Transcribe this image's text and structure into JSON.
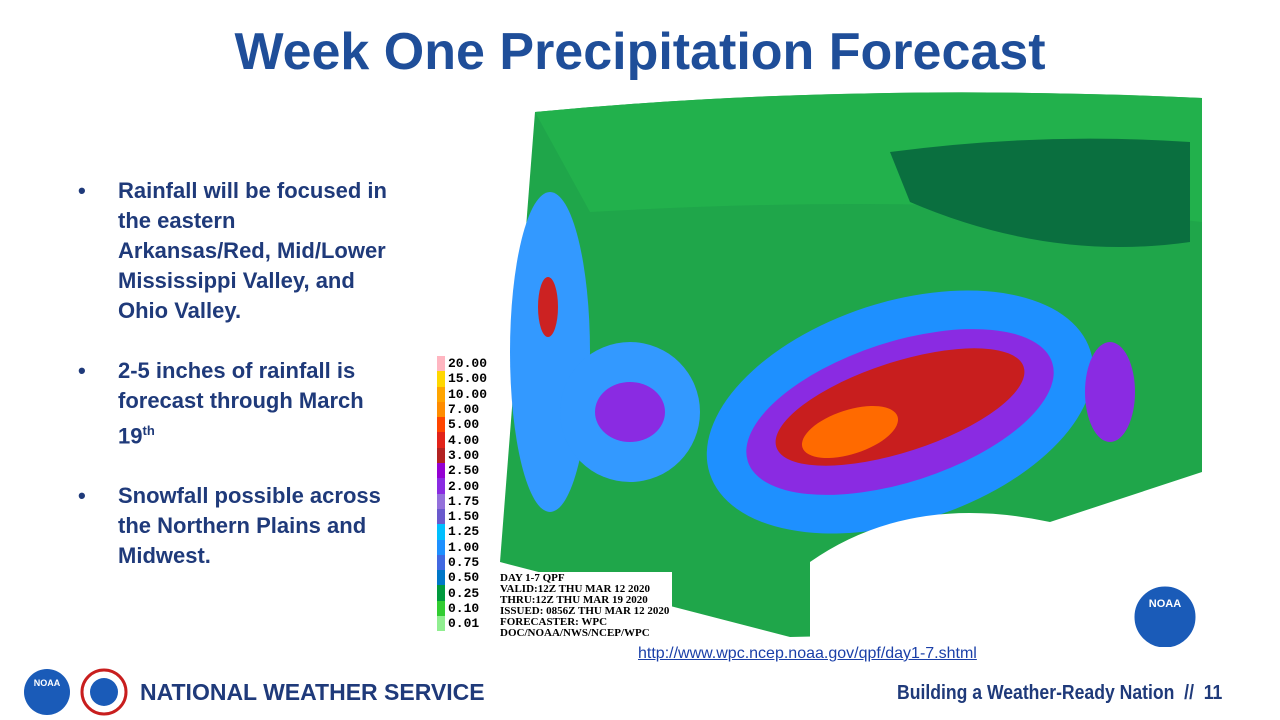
{
  "header": {
    "title": "Week One Precipitation Forecast"
  },
  "bullets": [
    {
      "text": "Rainfall will be focused in the eastern Arkansas/Red, Mid/Lower Mississippi Valley, and Ohio Valley."
    },
    {
      "text": "2-5 inches of rainfall is forecast through March 19",
      "sup": "th"
    },
    {
      "text": "Snowfall possible across the Northern Plains and Midwest."
    }
  ],
  "map": {
    "legend": [
      {
        "label": "20.00",
        "color": "#ffb6c1"
      },
      {
        "label": "15.00",
        "color": "#ffd700"
      },
      {
        "label": "10.00",
        "color": "#ffa500"
      },
      {
        "label": "7.00",
        "color": "#ff8c00"
      },
      {
        "label": "5.00",
        "color": "#ff4500"
      },
      {
        "label": "4.00",
        "color": "#e2231a"
      },
      {
        "label": "3.00",
        "color": "#b22222"
      },
      {
        "label": "2.50",
        "color": "#9400d3"
      },
      {
        "label": "2.00",
        "color": "#8a2be2"
      },
      {
        "label": "1.75",
        "color": "#9370db"
      },
      {
        "label": "1.50",
        "color": "#6a5acd"
      },
      {
        "label": "1.25",
        "color": "#00bfff"
      },
      {
        "label": "1.00",
        "color": "#1e90ff"
      },
      {
        "label": "0.75",
        "color": "#4169e1"
      },
      {
        "label": "0.50",
        "color": "#0077c8"
      },
      {
        "label": "0.25",
        "color": "#009a3e"
      },
      {
        "label": "0.10",
        "color": "#32cd32"
      },
      {
        "label": "0.01",
        "color": "#90ee90"
      }
    ],
    "info": [
      "DAY 1-7 QPF",
      "VALID:12Z THU MAR 12 2020",
      "THRU:12Z THU MAR 19 2020",
      "ISSUED: 0856Z THU MAR 12 2020",
      "FORECASTER: WPC",
      "DOC/NOAA/NWS/NCEP/WPC"
    ],
    "logo": "NOAA"
  },
  "url": "http://www.wpc.ncep.noaa.gov/qpf/day1-7.shtml",
  "footer": {
    "logo": "NOAA",
    "org": "NATIONAL WEATHER SERVICE",
    "tagline": "Building a Weather-Ready Nation  //  11"
  }
}
